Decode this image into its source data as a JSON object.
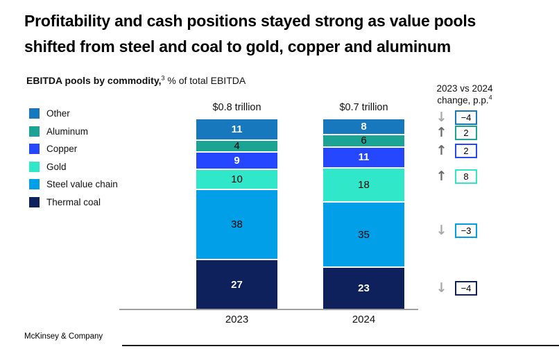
{
  "title": {
    "line1": "Profitability and cash positions stayed strong as value pools",
    "line2": "shifted from steel and coal to gold, copper and aluminum"
  },
  "subtitle": {
    "bold": "EBITDA pools by commodity,",
    "sup": "3",
    "rest": " % of total EBITDA"
  },
  "change_header": {
    "line1": "2023 vs 2024",
    "line2": "change, p.p.",
    "sup": "4"
  },
  "legend": [
    {
      "label": "Other",
      "color": "#1778BE"
    },
    {
      "label": "Aluminum",
      "color": "#1BA394"
    },
    {
      "label": "Copper",
      "color": "#2447FF"
    },
    {
      "label": "Gold",
      "color": "#30E7C9"
    },
    {
      "label": "Steel value chain",
      "color": "#009FE8"
    },
    {
      "label": "Thermal coal",
      "color": "#0E215C"
    }
  ],
  "chart_data": {
    "type": "bar",
    "stacked": true,
    "title": "EBITDA pools by commodity, % of total EBITDA",
    "xlabel": "",
    "ylabel": "% of total EBITDA",
    "ylim": [
      0,
      100
    ],
    "grid": false,
    "legend_position": "left",
    "categories": [
      "2023",
      "2024"
    ],
    "totals": [
      "$0.8 trillion",
      "$0.7 trillion"
    ],
    "series": [
      {
        "name": "Other",
        "color": "#1778BE",
        "label_style": "light",
        "values": [
          11,
          8
        ]
      },
      {
        "name": "Aluminum",
        "color": "#1BA394",
        "label_style": "dark",
        "values": [
          4,
          6
        ]
      },
      {
        "name": "Copper",
        "color": "#2447FF",
        "label_style": "light",
        "values": [
          9,
          11
        ]
      },
      {
        "name": "Gold",
        "color": "#30E7C9",
        "label_style": "dark",
        "values": [
          10,
          18
        ]
      },
      {
        "name": "Steel value chain",
        "color": "#009FE8",
        "label_style": "dark",
        "values": [
          38,
          35
        ]
      },
      {
        "name": "Thermal coal",
        "color": "#0E215C",
        "label_style": "light",
        "values": [
          27,
          23
        ]
      }
    ],
    "changes": [
      {
        "series": "Other",
        "direction": "down",
        "value": "−4",
        "box_color": "#1778BE"
      },
      {
        "series": "Aluminum",
        "direction": "up",
        "value": "2",
        "box_color": "#1BA394"
      },
      {
        "series": "Copper",
        "direction": "up",
        "value": "2",
        "box_color": "#2447FF"
      },
      {
        "series": "Gold",
        "direction": "up",
        "value": "8",
        "box_color": "#30E7C9"
      },
      {
        "series": "Steel value chain",
        "direction": "down",
        "value": "−3",
        "box_color": "#009FE8"
      },
      {
        "series": "Thermal coal",
        "direction": "down",
        "value": "−4",
        "box_color": "#0E215C"
      }
    ]
  },
  "footer": "McKinsey & Company"
}
